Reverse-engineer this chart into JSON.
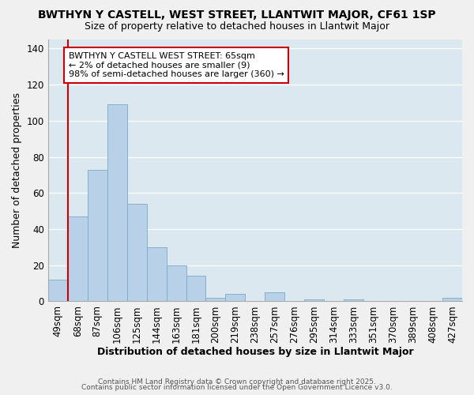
{
  "title": "BWTHYN Y CASTELL, WEST STREET, LLANTWIT MAJOR, CF61 1SP",
  "subtitle": "Size of property relative to detached houses in Llantwit Major",
  "xlabel": "Distribution of detached houses by size in Llantwit Major",
  "ylabel": "Number of detached properties",
  "categories": [
    "49sqm",
    "68sqm",
    "87sqm",
    "106sqm",
    "125sqm",
    "144sqm",
    "163sqm",
    "181sqm",
    "200sqm",
    "219sqm",
    "238sqm",
    "257sqm",
    "276sqm",
    "295sqm",
    "314sqm",
    "333sqm",
    "351sqm",
    "370sqm",
    "389sqm",
    "408sqm",
    "427sqm"
  ],
  "values": [
    12,
    47,
    73,
    109,
    54,
    30,
    20,
    14,
    2,
    4,
    0,
    5,
    0,
    1,
    0,
    1,
    0,
    0,
    0,
    0,
    2
  ],
  "bar_color": "#b8d0e8",
  "bar_edge_color": "#7aaac8",
  "vline_color": "#cc0000",
  "vline_x": 0.5,
  "annotation_text": "BWTHYN Y CASTELL WEST STREET: 65sqm\n← 2% of detached houses are smaller (9)\n98% of semi-detached houses are larger (360) →",
  "annotation_box_color": "#ffffff",
  "annotation_border_color": "#cc0000",
  "bg_color": "#f0f0f0",
  "plot_bg_color": "#dce8f0",
  "footer1": "Contains HM Land Registry data © Crown copyright and database right 2025.",
  "footer2": "Contains public sector information licensed under the Open Government Licence v3.0.",
  "ylim": [
    0,
    145
  ],
  "yticks": [
    0,
    20,
    40,
    60,
    80,
    100,
    120,
    140
  ],
  "title_fontsize": 10,
  "subtitle_fontsize": 9,
  "axis_label_fontsize": 9,
  "tick_fontsize": 8.5,
  "annotation_fontsize": 8
}
